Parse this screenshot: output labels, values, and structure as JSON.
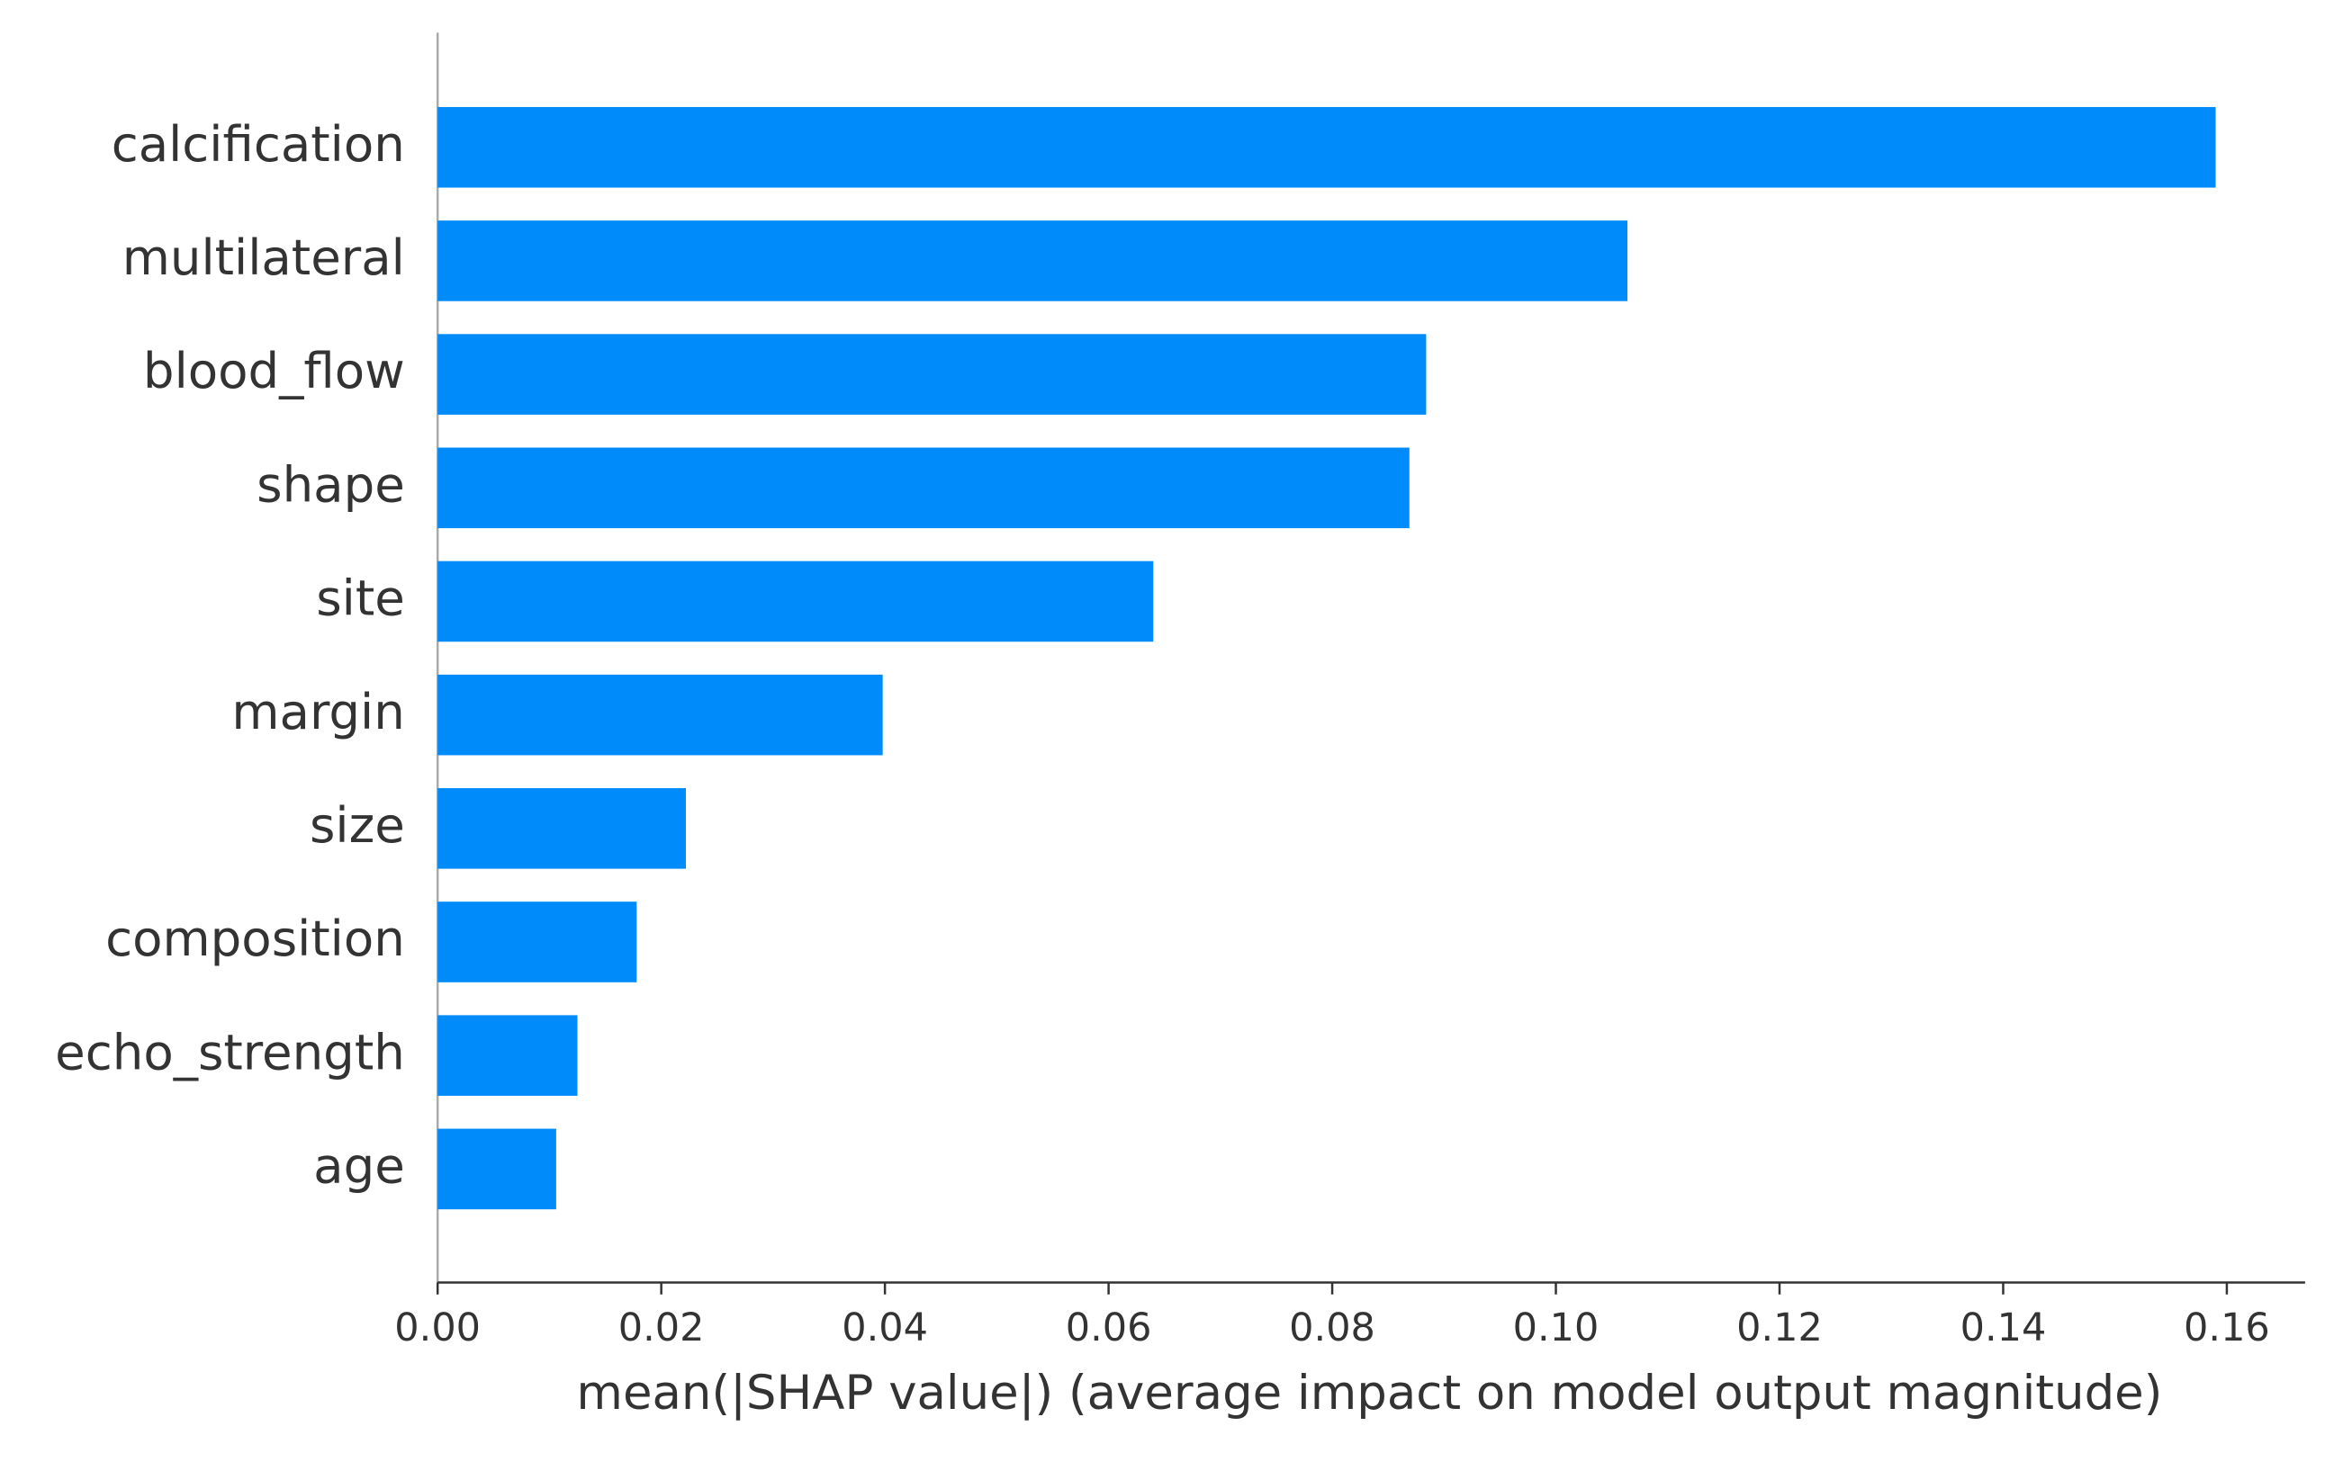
{
  "chart_data": {
    "type": "barh",
    "categories": [
      "calcification",
      "multilateral",
      "blood_flow",
      "shape",
      "site",
      "margin",
      "size",
      "composition",
      "echo_strength",
      "age"
    ],
    "values": [
      0.159,
      0.1064,
      0.0884,
      0.0869,
      0.064,
      0.0398,
      0.0222,
      0.0178,
      0.0125,
      0.0106
    ],
    "color": "#008bfb",
    "x_label": "mean(|SHAP value|) (average impact on model output magnitude)",
    "xlim": [
      0,
      0.167
    ],
    "xticks": [
      {
        "value": 0,
        "label": "0.00"
      },
      {
        "value": 0.02,
        "label": "0.02"
      },
      {
        "value": 0.04,
        "label": "0.04"
      },
      {
        "value": 0.06,
        "label": "0.06"
      },
      {
        "value": 0.08,
        "label": "0.08"
      },
      {
        "value": 0.1,
        "label": "0.10"
      },
      {
        "value": 0.12,
        "label": "0.12"
      },
      {
        "value": 0.14,
        "label": "0.14"
      },
      {
        "value": 0.16,
        "label": "0.16"
      }
    ],
    "grid": false
  }
}
